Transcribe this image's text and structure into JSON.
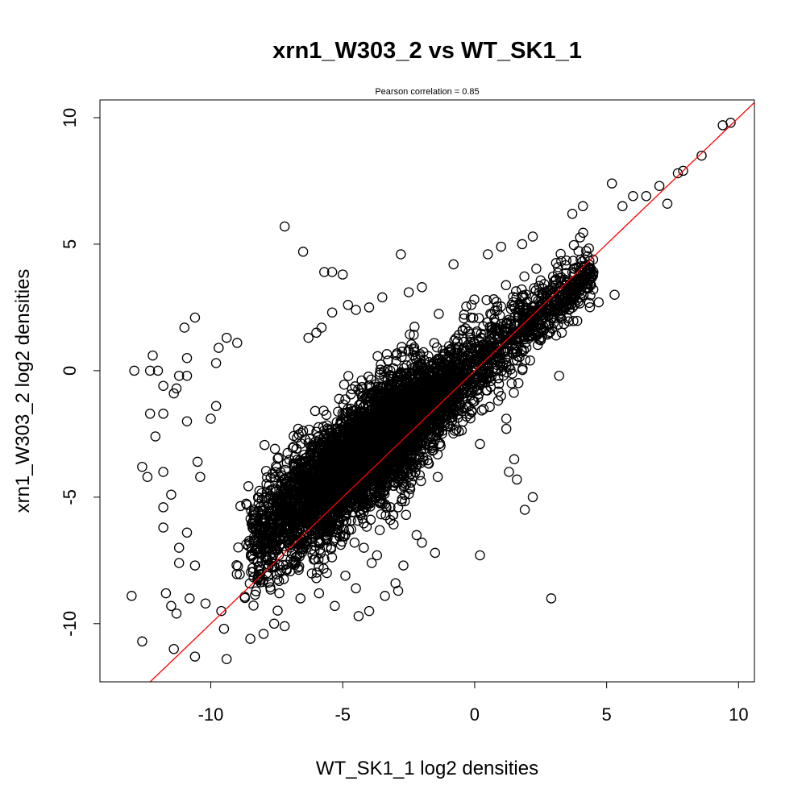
{
  "chart_data": {
    "type": "scatter",
    "title": "xrn1_W303_2 vs WT_SK1_1",
    "subtitle": "Pearson correlation =  0.85",
    "xlabel": "WT_SK1_1 log2 densities",
    "ylabel": "xrn1_W303_2 log2 densities",
    "xlim": [
      -14.2,
      10.6
    ],
    "ylim": [
      -12.3,
      10.7
    ],
    "x_ticks": [
      -10,
      -5,
      0,
      5,
      10
    ],
    "x_tick_labels": [
      "-10",
      "-5",
      "0",
      "5",
      "10"
    ],
    "y_ticks": [
      -10,
      -5,
      0,
      5,
      10
    ],
    "y_tick_labels": [
      "-10",
      "-5",
      "0",
      "5",
      "10"
    ],
    "grid": false,
    "legend": "none",
    "reference_line": {
      "slope": 1,
      "intercept": 0,
      "color": "#ff0000"
    },
    "point_style": {
      "shape": "open-circle",
      "stroke": "#000000"
    },
    "dense_band": {
      "x_range": [
        -8.5,
        4.5
      ],
      "relation": "y ≈ 0.83·x + 0.2 with spread ≈ 1.0 (wider at low x)",
      "approx_point_count": 5200
    },
    "outliers": [
      {
        "x": 9.7,
        "y": 9.8
      },
      {
        "x": 9.4,
        "y": 9.7
      },
      {
        "x": 8.6,
        "y": 8.5
      },
      {
        "x": 7.9,
        "y": 7.9
      },
      {
        "x": 7.7,
        "y": 7.8
      },
      {
        "x": 7.0,
        "y": 7.3
      },
      {
        "x": 6.5,
        "y": 6.9
      },
      {
        "x": 5.2,
        "y": 7.4
      },
      {
        "x": 7.3,
        "y": 6.6
      },
      {
        "x": 5.3,
        "y": 3.0
      },
      {
        "x": 4.5,
        "y": 3.9
      },
      {
        "x": 3.2,
        "y": -0.2
      },
      {
        "x": 2.9,
        "y": -9.0
      },
      {
        "x": 2.2,
        "y": -5.0
      },
      {
        "x": 1.9,
        "y": -5.5
      },
      {
        "x": 1.6,
        "y": -4.3
      },
      {
        "x": 1.5,
        "y": -3.5
      },
      {
        "x": 1.3,
        "y": -4.0
      },
      {
        "x": 1.2,
        "y": -1.9
      },
      {
        "x": 1.2,
        "y": -2.3
      },
      {
        "x": 1.0,
        "y": -1.0
      },
      {
        "x": 0.2,
        "y": -7.3
      },
      {
        "x": 0.2,
        "y": -2.9
      },
      {
        "x": -1.5,
        "y": -7.2
      },
      {
        "x": -2.0,
        "y": -6.8
      },
      {
        "x": -1.4,
        "y": -4.2
      },
      {
        "x": -2.9,
        "y": -8.7
      },
      {
        "x": -3.4,
        "y": -8.9
      },
      {
        "x": -4.0,
        "y": -9.5
      },
      {
        "x": -4.4,
        "y": -9.7
      },
      {
        "x": -5.3,
        "y": -9.3
      },
      {
        "x": -6.6,
        "y": -9.0
      },
      {
        "x": -7.6,
        "y": -10.0
      },
      {
        "x": -7.2,
        "y": -10.1
      },
      {
        "x": -8.5,
        "y": -10.6
      },
      {
        "x": -8.0,
        "y": -10.4
      },
      {
        "x": -9.4,
        "y": -11.4
      },
      {
        "x": -10.6,
        "y": -11.3
      },
      {
        "x": -11.4,
        "y": -11.0
      },
      {
        "x": -12.6,
        "y": -10.7
      },
      {
        "x": -13.0,
        "y": -8.9
      },
      {
        "x": -11.5,
        "y": -9.3
      },
      {
        "x": -11.3,
        "y": -9.6
      },
      {
        "x": -11.7,
        "y": -8.8
      },
      {
        "x": -10.8,
        "y": -9.0
      },
      {
        "x": -10.2,
        "y": -9.2
      },
      {
        "x": -9.6,
        "y": -9.5
      },
      {
        "x": -9.5,
        "y": -10.2
      },
      {
        "x": -12.4,
        "y": -4.2
      },
      {
        "x": -12.6,
        "y": -3.8
      },
      {
        "x": -11.8,
        "y": -4.0
      },
      {
        "x": -11.5,
        "y": -4.9
      },
      {
        "x": -11.8,
        "y": -5.4
      },
      {
        "x": -11.8,
        "y": -6.2
      },
      {
        "x": -11.2,
        "y": -7.0
      },
      {
        "x": -11.2,
        "y": -7.6
      },
      {
        "x": -10.9,
        "y": -6.4
      },
      {
        "x": -10.6,
        "y": -7.7
      },
      {
        "x": -10.5,
        "y": -3.6
      },
      {
        "x": -10.4,
        "y": -4.2
      },
      {
        "x": -10.9,
        "y": -2.0
      },
      {
        "x": -12.1,
        "y": -2.6
      },
      {
        "x": -11.8,
        "y": -1.7
      },
      {
        "x": -12.3,
        "y": -1.7
      },
      {
        "x": -11.4,
        "y": -0.9
      },
      {
        "x": -11.3,
        "y": -0.7
      },
      {
        "x": -11.8,
        "y": -0.6
      },
      {
        "x": -12.9,
        "y": 0.0
      },
      {
        "x": -12.3,
        "y": 0.0
      },
      {
        "x": -12.0,
        "y": 0.0
      },
      {
        "x": -11.2,
        "y": -0.2
      },
      {
        "x": -10.9,
        "y": -0.2
      },
      {
        "x": -12.2,
        "y": 0.6
      },
      {
        "x": -10.9,
        "y": 0.5
      },
      {
        "x": -11.0,
        "y": 1.7
      },
      {
        "x": -10.6,
        "y": 2.1
      },
      {
        "x": -9.7,
        "y": 0.9
      },
      {
        "x": -9.4,
        "y": 1.3
      },
      {
        "x": -9.0,
        "y": 1.1
      },
      {
        "x": -9.8,
        "y": 0.3
      },
      {
        "x": -10.0,
        "y": -1.9
      },
      {
        "x": -9.8,
        "y": -1.4
      },
      {
        "x": -7.2,
        "y": 5.7
      },
      {
        "x": -6.5,
        "y": 4.7
      },
      {
        "x": -5.7,
        "y": 3.9
      },
      {
        "x": -5.4,
        "y": 3.9
      },
      {
        "x": -5.0,
        "y": 3.8
      },
      {
        "x": -2.8,
        "y": 4.6
      },
      {
        "x": -5.4,
        "y": 2.3
      },
      {
        "x": -4.8,
        "y": 2.6
      },
      {
        "x": -4.5,
        "y": 2.4
      },
      {
        "x": -4.0,
        "y": 2.5
      },
      {
        "x": -3.5,
        "y": 2.9
      },
      {
        "x": -6.3,
        "y": 1.3
      },
      {
        "x": -6.0,
        "y": 1.5
      },
      {
        "x": -5.8,
        "y": 1.7
      },
      {
        "x": -2.5,
        "y": 3.1
      },
      {
        "x": -2.0,
        "y": 3.3
      },
      {
        "x": -0.8,
        "y": 4.2
      },
      {
        "x": 0.5,
        "y": 4.6
      },
      {
        "x": 1.0,
        "y": 4.9
      },
      {
        "x": 1.8,
        "y": 5.0
      },
      {
        "x": 2.2,
        "y": 5.3
      },
      {
        "x": 3.7,
        "y": 6.2
      },
      {
        "x": 4.1,
        "y": 6.5
      },
      {
        "x": 5.6,
        "y": 6.5
      },
      {
        "x": 6.0,
        "y": 6.9
      },
      {
        "x": 4.7,
        "y": 2.7
      },
      {
        "x": 3.3,
        "y": 1.5
      },
      {
        "x": 2.1,
        "y": 0.4
      },
      {
        "x": 2.5,
        "y": 1.2
      },
      {
        "x": 1.6,
        "y": 0.4
      },
      {
        "x": 1.4,
        "y": -0.5
      },
      {
        "x": 0.9,
        "y": -0.3
      },
      {
        "x": -0.8,
        "y": -1.6
      },
      {
        "x": -1.0,
        "y": -2.1
      },
      {
        "x": -1.3,
        "y": -2.0
      },
      {
        "x": -1.5,
        "y": -2.7
      },
      {
        "x": -0.6,
        "y": -2.4
      },
      {
        "x": -7.4,
        "y": -8.8
      },
      {
        "x": -6.0,
        "y": -8.2
      },
      {
        "x": -5.6,
        "y": -8.0
      },
      {
        "x": -5.9,
        "y": -8.8
      },
      {
        "x": -4.9,
        "y": -8.1
      },
      {
        "x": -4.5,
        "y": -8.6
      },
      {
        "x": -3.0,
        "y": -8.4
      },
      {
        "x": -2.7,
        "y": -7.7
      },
      {
        "x": -2.2,
        "y": -6.5
      },
      {
        "x": -2.6,
        "y": -5.7
      },
      {
        "x": -2.9,
        "y": -5.4
      },
      {
        "x": -3.2,
        "y": -5.9
      },
      {
        "x": -3.6,
        "y": -6.3
      },
      {
        "x": -3.9,
        "y": -7.6
      },
      {
        "x": -4.2,
        "y": -7.0
      },
      {
        "x": -3.7,
        "y": -7.3
      }
    ]
  }
}
